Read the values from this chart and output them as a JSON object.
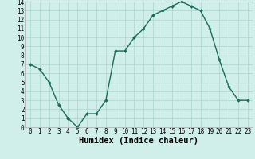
{
  "x": [
    0,
    1,
    2,
    3,
    4,
    5,
    6,
    7,
    8,
    9,
    10,
    11,
    12,
    13,
    14,
    15,
    16,
    17,
    18,
    19,
    20,
    21,
    22,
    23
  ],
  "y": [
    7.0,
    6.5,
    5.0,
    2.5,
    1.0,
    0.0,
    1.5,
    1.5,
    3.0,
    8.5,
    8.5,
    10.0,
    11.0,
    12.5,
    13.0,
    13.5,
    14.0,
    13.5,
    13.0,
    11.0,
    7.5,
    4.5,
    3.0,
    3.0
  ],
  "line_color": "#1a6b5a",
  "marker": "D",
  "marker_size": 2.0,
  "background_color": "#d0eeea",
  "grid_color": "#b0d8d2",
  "xlabel": "Humidex (Indice chaleur)",
  "ylabel": "",
  "title": "",
  "xlim": [
    -0.5,
    23.5
  ],
  "ylim": [
    0,
    14
  ],
  "yticks": [
    0,
    1,
    2,
    3,
    4,
    5,
    6,
    7,
    8,
    9,
    10,
    11,
    12,
    13,
    14
  ],
  "xticks": [
    0,
    1,
    2,
    3,
    4,
    5,
    6,
    7,
    8,
    9,
    10,
    11,
    12,
    13,
    14,
    15,
    16,
    17,
    18,
    19,
    20,
    21,
    22,
    23
  ],
  "tick_label_fontsize": 5.5,
  "xlabel_fontsize": 7.5,
  "line_width": 1.0
}
